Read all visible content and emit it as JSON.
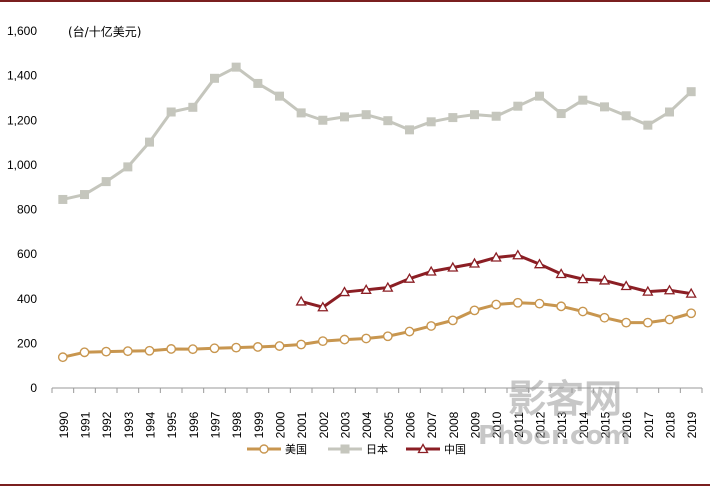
{
  "chart_data": {
    "type": "line",
    "title": "",
    "unit_label": "(台/十亿美元)",
    "xlabel": "",
    "ylabel": "",
    "ylim": [
      0,
      1600
    ],
    "yticks": [
      0,
      200,
      400,
      600,
      800,
      1000,
      1200,
      1400,
      1600
    ],
    "ytick_labels": [
      "0",
      "200",
      "400",
      "600",
      "800",
      "1,000",
      "1,200",
      "1,400",
      "1,600"
    ],
    "x": [
      "1990",
      "1991",
      "1992",
      "1993",
      "1994",
      "1995",
      "1996",
      "1997",
      "1998",
      "1999",
      "2000",
      "2001",
      "2002",
      "2003",
      "2004",
      "2005",
      "2006",
      "2007",
      "2008",
      "2009",
      "2010",
      "2011",
      "2012",
      "2013",
      "2014",
      "2015",
      "2016",
      "2017",
      "2018",
      "2019"
    ],
    "grid": false,
    "legend_position": "bottom",
    "series": [
      {
        "name": "美国",
        "color": "#c8964f",
        "marker": "circle",
        "values": [
          138,
          160,
          163,
          165,
          167,
          175,
          174,
          178,
          181,
          184,
          188,
          195,
          210,
          217,
          222,
          232,
          253,
          278,
          303,
          348,
          374,
          382,
          378,
          366,
          343,
          315,
          293,
          293,
          307,
          335
        ]
      },
      {
        "name": "日本",
        "color": "#c5c6bd",
        "marker": "square",
        "values": [
          845,
          867,
          925,
          991,
          1102,
          1237,
          1258,
          1388,
          1438,
          1365,
          1308,
          1233,
          1200,
          1215,
          1225,
          1198,
          1157,
          1193,
          1212,
          1225,
          1218,
          1263,
          1308,
          1230,
          1290,
          1260,
          1220,
          1178,
          1237,
          1328
        ]
      },
      {
        "name": "中国",
        "color": "#8b1e24",
        "marker": "triangle",
        "values": [
          null,
          null,
          null,
          null,
          null,
          null,
          null,
          null,
          null,
          null,
          null,
          388,
          362,
          430,
          440,
          450,
          490,
          522,
          540,
          558,
          585,
          595,
          555,
          511,
          488,
          482,
          457,
          432,
          438,
          423
        ]
      }
    ]
  },
  "watermark": {
    "line1": "影客网",
    "line2": "Phoer.com"
  }
}
